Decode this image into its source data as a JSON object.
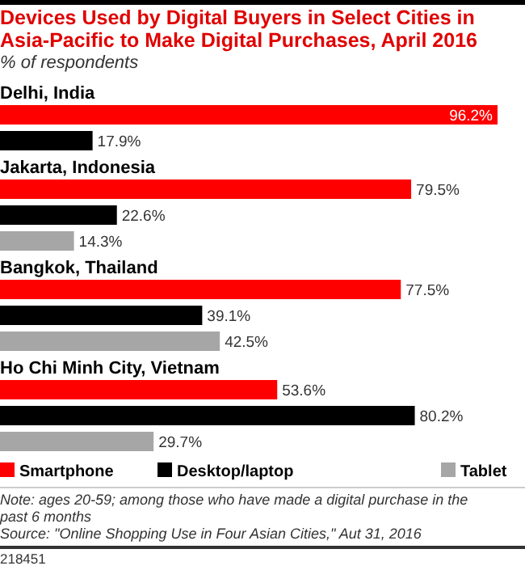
{
  "chart_data": {
    "type": "bar",
    "orientation": "horizontal",
    "title": "Devices Used by Digital Buyers in Select Cities in Asia-Pacific to Make Digital Purchases, April 2016",
    "subtitle": "% of respondents",
    "categories": [
      "Delhi, India",
      "Jakarta, Indonesia",
      "Bangkok, Thailand",
      "Ho Chi Minh City, Vietnam"
    ],
    "series": [
      {
        "name": "Smartphone",
        "color": "#ff0000",
        "values": [
          96.2,
          79.5,
          77.5,
          53.6
        ],
        "value_labels": [
          "96.2%",
          "79.5%",
          "77.5%",
          "53.6%"
        ]
      },
      {
        "name": "Desktop/laptop",
        "color": "#000000",
        "values": [
          17.9,
          22.6,
          39.1,
          80.2
        ],
        "value_labels": [
          "17.9%",
          "22.6%",
          "39.1%",
          "80.2%"
        ]
      },
      {
        "name": "Tablet",
        "color": "#a6a6a6",
        "values": [
          null,
          14.3,
          42.5,
          29.7
        ],
        "value_labels": [
          null,
          "14.3%",
          "42.5%",
          "29.7%"
        ]
      }
    ],
    "legend": "bottom",
    "annotations": [
      "Note: ages 20-59; among those who have made a digital purchase in the past 6 months",
      "Source: \"Online Shopping Use in Four Asian Cities,\" Aut 31, 2016",
      "218451"
    ]
  }
}
